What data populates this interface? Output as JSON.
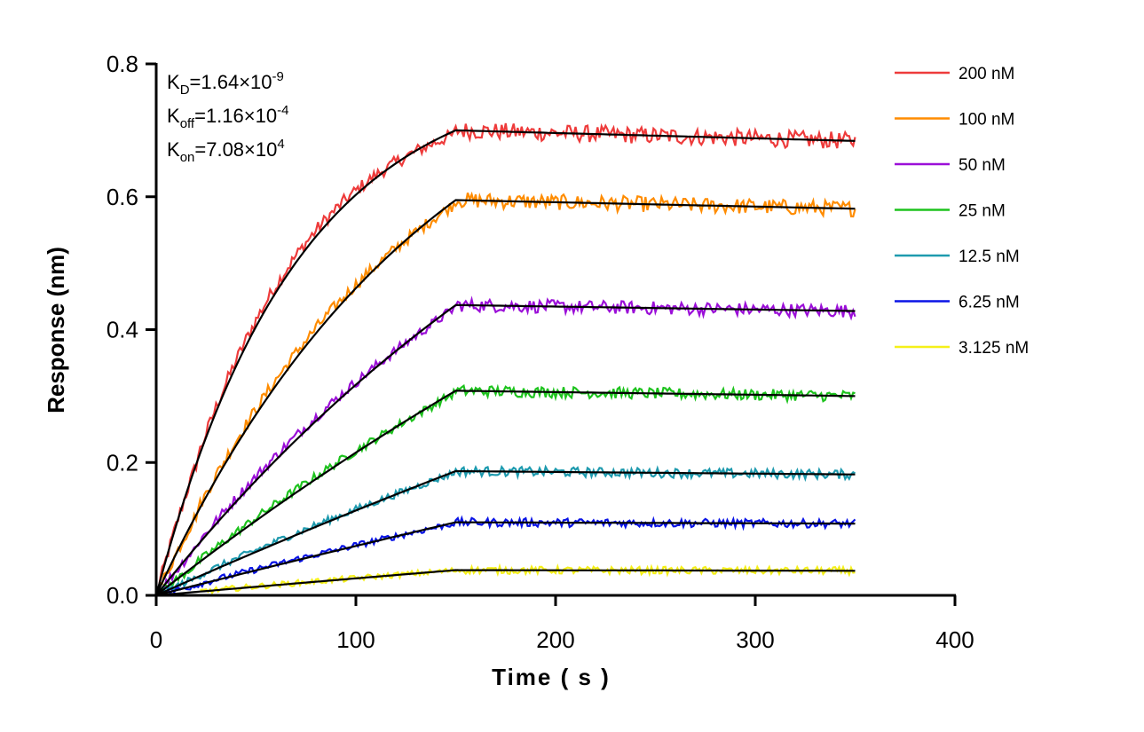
{
  "chart_data": {
    "type": "line",
    "xlabel": "Time ( s )",
    "ylabel": "Response (nm)",
    "xlim": [
      0,
      400
    ],
    "ylim": [
      0,
      0.8
    ],
    "xticks": [
      "0",
      "100",
      "200",
      "300",
      "400"
    ],
    "yticks": [
      "0.0",
      "0.2",
      "0.4",
      "0.6",
      "0.8"
    ],
    "grid": false,
    "legend_position": "right",
    "association_end_s": 150,
    "dissociation_end_s": 350,
    "fit_color": "#000000",
    "annotations": [
      {
        "sym": "K",
        "sub": "D",
        "val": "=1.64×10",
        "exp": "-9"
      },
      {
        "sym": "K",
        "sub": "off",
        "val": "=1.16×10",
        "exp": "-4"
      },
      {
        "sym": "K",
        "sub": "on",
        "val": "=7.08×10",
        "exp": "4"
      }
    ],
    "kinetics": {
      "KD": 1.64e-09,
      "koff": 0.000116,
      "kon": 70800.0
    },
    "series": [
      {
        "name": "200 nM",
        "conc_nM": 200,
        "color": "#EE3B3B",
        "response_at_150s": 0.7,
        "response_at_350s": 0.684,
        "start_s": 0
      },
      {
        "name": "100 nM",
        "conc_nM": 100,
        "color": "#FF8C00",
        "response_at_150s": 0.595,
        "response_at_350s": 0.582,
        "start_s": 0
      },
      {
        "name": "50 nM",
        "conc_nM": 50,
        "color": "#9B0FD8",
        "response_at_150s": 0.437,
        "response_at_350s": 0.428,
        "start_s": 0
      },
      {
        "name": "25 nM",
        "conc_nM": 25,
        "color": "#1EC31E",
        "response_at_150s": 0.308,
        "response_at_350s": 0.3,
        "start_s": 0
      },
      {
        "name": "12.5 nM",
        "conc_nM": 12.5,
        "color": "#1E9AAE",
        "response_at_150s": 0.187,
        "response_at_350s": 0.182,
        "start_s": 0
      },
      {
        "name": "6.25 nM",
        "conc_nM": 6.25,
        "color": "#0A14E6",
        "response_at_150s": 0.11,
        "response_at_350s": 0.108,
        "start_s": 0
      },
      {
        "name": "3.125 nM",
        "conc_nM": 3.125,
        "color": "#F5F019",
        "response_at_150s": 0.038,
        "response_at_350s": 0.037,
        "start_s": 22
      }
    ]
  }
}
